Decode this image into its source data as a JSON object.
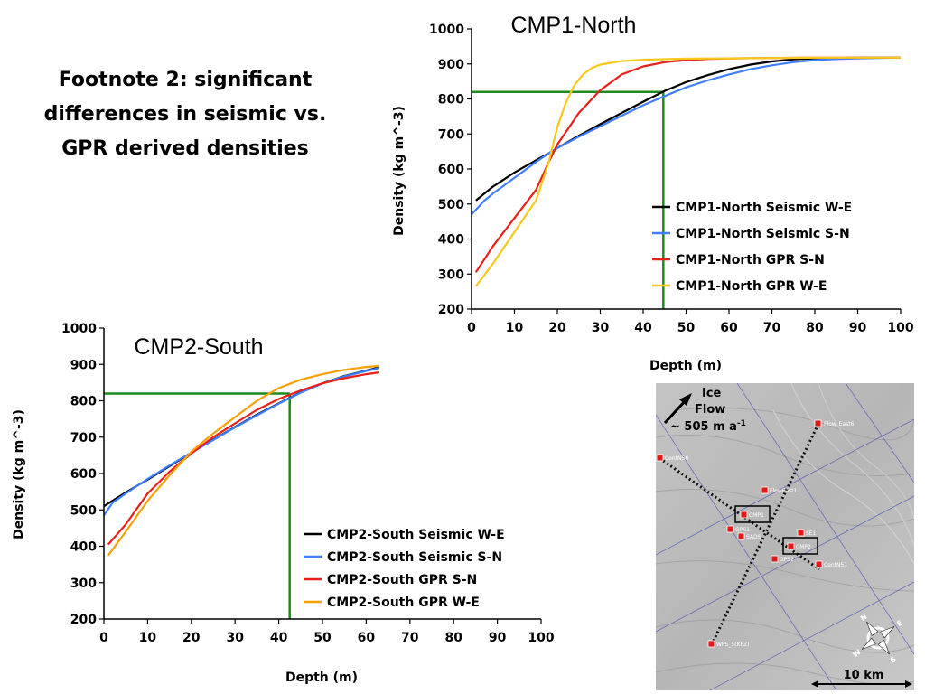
{
  "footnote": {
    "line1": "Footnote 2: significant",
    "line2": "differences in seismic vs.",
    "line3": "GPR derived densities"
  },
  "chart_data": [
    {
      "type": "line",
      "title": "CMP1-North",
      "xlabel": "Depth (m)",
      "ylabel": "Density (kg m^-3)",
      "xlim": [
        0,
        100
      ],
      "ylim": [
        200,
        1000
      ],
      "xticks": [
        0,
        10,
        20,
        30,
        40,
        50,
        60,
        70,
        80,
        90,
        100
      ],
      "yticks": [
        200,
        300,
        400,
        500,
        600,
        700,
        800,
        900,
        1000
      ],
      "legend_position": "middle-right",
      "series": [
        {
          "name": "CMP1-North Seismic W-E",
          "color": "#000000",
          "x": [
            1,
            5,
            10,
            15,
            18,
            20,
            25,
            30,
            35,
            40,
            45,
            50,
            55,
            60,
            65,
            70,
            75,
            80,
            85,
            90,
            95,
            100
          ],
          "y": [
            510,
            550,
            590,
            625,
            645,
            660,
            695,
            728,
            760,
            792,
            823,
            848,
            868,
            885,
            898,
            907,
            913,
            916,
            917,
            918,
            918,
            918
          ]
        },
        {
          "name": "CMP1-North Seismic S-N",
          "color": "#3f7fff",
          "x": [
            0,
            3,
            5,
            10,
            15,
            18,
            20,
            25,
            30,
            35,
            40,
            45,
            50,
            55,
            60,
            65,
            70,
            75,
            80,
            85,
            90,
            95,
            100
          ],
          "y": [
            470,
            510,
            530,
            575,
            620,
            645,
            660,
            692,
            722,
            752,
            782,
            808,
            833,
            853,
            870,
            885,
            896,
            905,
            911,
            914,
            916,
            917,
            918
          ]
        },
        {
          "name": "CMP1-North GPR S-N",
          "color": "#e8201a",
          "x": [
            1,
            5,
            10,
            15,
            18,
            20,
            25,
            30,
            35,
            40,
            45,
            50,
            55,
            60,
            70,
            80,
            90,
            100
          ],
          "y": [
            305,
            380,
            460,
            540,
            620,
            670,
            760,
            825,
            870,
            893,
            905,
            911,
            914,
            916,
            917,
            918,
            918,
            918
          ]
        },
        {
          "name": "CMP1-North GPR W-E",
          "color": "#f8c81c",
          "x": [
            1,
            5,
            10,
            15,
            16,
            18,
            20,
            22,
            24,
            26,
            28,
            30,
            35,
            40,
            50,
            60,
            70,
            80,
            90,
            100
          ],
          "y": [
            265,
            330,
            420,
            510,
            545,
            620,
            720,
            790,
            840,
            870,
            888,
            898,
            908,
            912,
            915,
            916,
            917,
            918,
            918,
            918
          ]
        }
      ],
      "annotations": [
        {
          "type": "reference-line",
          "color": "#1e8a1e",
          "x": 44.7,
          "y": 820
        }
      ]
    },
    {
      "type": "line",
      "title": "CMP2-South",
      "xlabel": "Depth (m)",
      "ylabel": "Density (kg m^-3)",
      "xlim": [
        0,
        100
      ],
      "ylim": [
        200,
        1000
      ],
      "xticks": [
        0,
        10,
        20,
        30,
        40,
        50,
        60,
        70,
        80,
        90,
        100
      ],
      "yticks": [
        200,
        300,
        400,
        500,
        600,
        700,
        800,
        900,
        1000
      ],
      "legend_position": "lower-right",
      "series": [
        {
          "name": "CMP2-South Seismic W-E",
          "color": "#000000",
          "x": [
            0,
            5,
            10,
            15,
            20,
            25,
            30,
            35,
            40,
            45,
            50,
            55,
            60,
            63
          ],
          "y": [
            510,
            548,
            583,
            620,
            657,
            693,
            728,
            762,
            793,
            823,
            848,
            868,
            883,
            892
          ]
        },
        {
          "name": "CMP2-South Seismic S-N",
          "color": "#3f7fff",
          "x": [
            0,
            2,
            5,
            10,
            15,
            20,
            25,
            30,
            35,
            40,
            45,
            50,
            55,
            60,
            63
          ],
          "y": [
            485,
            520,
            545,
            585,
            622,
            658,
            692,
            727,
            760,
            792,
            822,
            848,
            867,
            882,
            890
          ]
        },
        {
          "name": "CMP2-South GPR S-N",
          "color": "#e8201a",
          "x": [
            1,
            5,
            10,
            15,
            20,
            25,
            30,
            35,
            40,
            45,
            50,
            55,
            60,
            63
          ],
          "y": [
            405,
            460,
            545,
            605,
            655,
            700,
            738,
            775,
            805,
            828,
            848,
            862,
            873,
            878
          ]
        },
        {
          "name": "CMP2-South GPR W-E",
          "color": "#f7a000",
          "x": [
            1,
            5,
            10,
            15,
            20,
            25,
            30,
            35,
            40,
            45,
            50,
            55,
            60,
            63
          ],
          "y": [
            375,
            440,
            525,
            595,
            660,
            710,
            755,
            800,
            835,
            858,
            873,
            885,
            893,
            896
          ]
        }
      ],
      "annotations": [
        {
          "type": "reference-line",
          "color": "#1e8a1e",
          "x": 42.5,
          "y": 820
        }
      ]
    }
  ],
  "map": {
    "ice_flow_line1": "Ice",
    "ice_flow_line2": "Flow",
    "ice_flow_speed": "~ 505 m a",
    "ice_flow_speed_sup": "-1",
    "scale_label": "10 km",
    "compass_labels": {
      "n": "N",
      "e": "E",
      "s": "S",
      "w": "W"
    },
    "stations": {
      "flow_east6": "Flow_East6",
      "cent_n56": "CentN56",
      "flow_east1": "FlowEast1",
      "cmp1": "CMP1",
      "gps1": "GPS1",
      "sads": "SADS",
      "se1": "SE1",
      "cmp2": "CMP2",
      "gps2": "GPS2",
      "cent_n51": "CentN51",
      "wps_5": "WPS_5(KPZ)"
    }
  }
}
